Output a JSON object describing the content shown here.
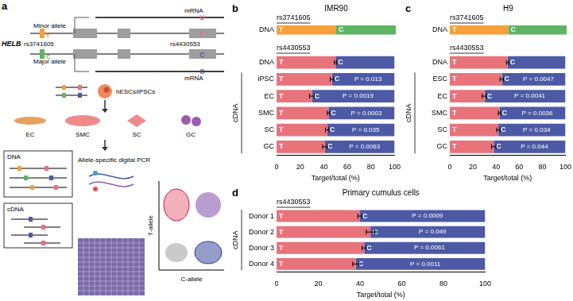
{
  "diagram": {
    "panel": "a",
    "gene": "HELB",
    "minor_allele": "Minor allele",
    "major_allele": "Major allele",
    "snp1": "rs3741605",
    "snp2": "rs4430553",
    "mrna": "mRNA",
    "minor_snp1": "T",
    "minor_snp2": "T",
    "major_snp1": "C",
    "major_snp2": "C",
    "minor_mrna": "U",
    "major_mrna": "C",
    "stem_cells": "hESCs/iPSCs",
    "cell_types": [
      "EC",
      "SMC",
      "SC",
      "GC"
    ],
    "dna": "DNA",
    "cdna": "cDNA",
    "method": "Allele-specific digital PCR",
    "y_axis": "T-allele",
    "x_axis": "C-allele"
  },
  "chart_data": [
    {
      "type": "bar",
      "orientation": "horizontal",
      "stacked": true,
      "grid": false,
      "tick_labels": "y",
      "panel": "b",
      "title": "IMR90",
      "subtitle": "rs3741605",
      "categories": [
        "DNA"
      ],
      "series": [
        {
          "name": "T",
          "color": "#f5a03a",
          "values": [
            50
          ]
        },
        {
          "name": "C",
          "color": "#5db562",
          "values": [
            50
          ]
        }
      ],
      "xlim": [
        0,
        100
      ]
    },
    {
      "type": "bar",
      "orientation": "horizontal",
      "stacked": true,
      "grid": false,
      "subtitle": "rs4430553",
      "x_label": "Target/total (%)",
      "categories": [
        "DNA",
        "iPSC",
        "EC",
        "SMC",
        "SC",
        "GC"
      ],
      "groups": [
        null,
        "cDNA",
        "cDNA",
        "cDNA",
        "cDNA",
        "cDNA"
      ],
      "series": [
        {
          "name": "T",
          "color": "#e8737b",
          "values": [
            50,
            47,
            30,
            44,
            43,
            41
          ],
          "errors": [
            1,
            1.5,
            2,
            1,
            1.5,
            2
          ]
        },
        {
          "name": "C",
          "color": "#4c5aa6",
          "values": [
            50,
            53,
            70,
            56,
            57,
            59
          ]
        }
      ],
      "annotations": [
        null,
        "P = 0.013",
        "P = 0.0019",
        "P = 0.0003",
        "P = 0.035",
        "P = 0.0063"
      ],
      "xlim": [
        0,
        100
      ],
      "xticks": [
        0,
        20,
        40,
        60,
        80,
        100
      ]
    },
    {
      "type": "bar",
      "orientation": "horizontal",
      "stacked": true,
      "grid": false,
      "tick_labels": "y",
      "panel": "c",
      "title": "H9",
      "subtitle": "rs3741605",
      "categories": [
        "DNA"
      ],
      "series": [
        {
          "name": "T",
          "color": "#f5a03a",
          "values": [
            50
          ]
        },
        {
          "name": "C",
          "color": "#5db562",
          "values": [
            50
          ]
        }
      ],
      "xlim": [
        0,
        100
      ]
    },
    {
      "type": "bar",
      "orientation": "horizontal",
      "stacked": true,
      "grid": false,
      "subtitle": "rs4430553",
      "x_label": "Target/total (%)",
      "categories": [
        "DNA",
        "ESC",
        "EC",
        "SMC",
        "SC",
        "GC"
      ],
      "groups": [
        null,
        "cDNA",
        "cDNA",
        "cDNA",
        "cDNA",
        "cDNA"
      ],
      "series": [
        {
          "name": "T",
          "color": "#e8737b",
          "values": [
            50,
            45,
            30,
            43,
            42,
            38
          ],
          "errors": [
            1,
            1.5,
            2,
            1,
            1.5,
            2
          ]
        },
        {
          "name": "C",
          "color": "#4c5aa6",
          "values": [
            50,
            55,
            70,
            57,
            58,
            62
          ]
        }
      ],
      "annotations": [
        null,
        "P = 0.0047",
        "P = 0.0041",
        "P = 0.0036",
        "P = 0.034",
        "P = 0.044"
      ],
      "xlim": [
        0,
        100
      ],
      "xticks": [
        0,
        20,
        40,
        60,
        80,
        100
      ]
    },
    {
      "type": "bar",
      "orientation": "horizontal",
      "stacked": true,
      "grid": false,
      "panel": "d",
      "title": "Primary cumulus cells",
      "subtitle": "rs4430553",
      "x_label": "Target/total (%)",
      "categories": [
        "Donor 1",
        "Donor 2",
        "Donor 3",
        "Donor 4"
      ],
      "groups": [
        "cDNA",
        "cDNA",
        "cDNA",
        "cDNA"
      ],
      "series": [
        {
          "name": "T",
          "color": "#e8737b",
          "values": [
            40,
            45,
            42,
            38
          ],
          "errors": [
            1,
            2,
            1,
            1.5
          ]
        },
        {
          "name": "C",
          "color": "#4c5aa6",
          "values": [
            60,
            55,
            58,
            62
          ]
        }
      ],
      "annotations": [
        "P = 0.0009",
        "P = 0.049",
        "P = 0.0061",
        "P = 0.0011"
      ],
      "xlim": [
        0,
        100
      ],
      "xticks": [
        0,
        20,
        40,
        60,
        80,
        100
      ]
    }
  ]
}
